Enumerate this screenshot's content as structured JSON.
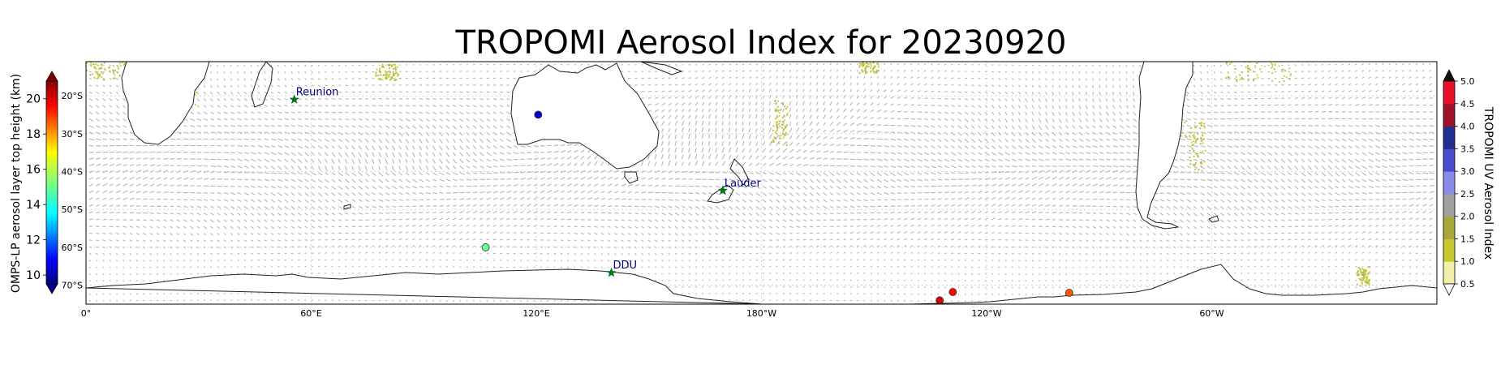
{
  "figure": {
    "title": "TROPOMI Aerosol Index for 20230920"
  },
  "map": {
    "lon_ticks": [
      "0°",
      "60°E",
      "120°E",
      "180°W",
      "120°W",
      "60°W"
    ],
    "lat_ticks": [
      "20°S",
      "30°S",
      "40°S",
      "50°S",
      "60°S",
      "70°S"
    ],
    "lon_tick_values": [
      0,
      60,
      120,
      180,
      240,
      300
    ],
    "lat_tick_values": [
      -20,
      -30,
      -40,
      -50,
      -60,
      -70
    ],
    "lon_range": [
      0,
      360
    ],
    "lat_range": [
      -75,
      -11
    ]
  },
  "left_colorbar": {
    "label": "OMPS-LP aerosol layer top height (km)",
    "ticks": [
      "20",
      "18",
      "16",
      "14",
      "12",
      "10"
    ],
    "tick_values": [
      20,
      18,
      16,
      14,
      12,
      10
    ],
    "range": [
      9.5,
      21
    ],
    "colormap": "jet",
    "extend": "both"
  },
  "right_colorbar": {
    "label": "TROPOMI UV Aerosol Index",
    "ticks": [
      "5.0",
      "4.5",
      "4.0",
      "3.5",
      "3.0",
      "2.5",
      "2.0",
      "1.5",
      "1.0",
      "0.5"
    ],
    "tick_values": [
      5.0,
      4.5,
      4.0,
      3.5,
      3.0,
      2.5,
      2.0,
      1.5,
      1.0,
      0.5
    ],
    "range": [
      0.5,
      5.0
    ],
    "colors": [
      "#ffffff",
      "#f1f0a8",
      "#c8c830",
      "#a8a838",
      "#a0a0a0",
      "#8a8ae8",
      "#4b4bd0",
      "#222f8f",
      "#a0102a",
      "#e8102a",
      "#111111"
    ],
    "extend": "both"
  },
  "stations": [
    {
      "name": "Reunion",
      "lon": 55.5,
      "lat": -21.0
    },
    {
      "name": "Lauder",
      "lon": 169.7,
      "lat": -45.0
    },
    {
      "name": "DDU",
      "lon": 140.0,
      "lat": -66.7
    }
  ],
  "omps_points": [
    {
      "lon": 120.5,
      "lat": -25.0,
      "height_km": 10.5
    },
    {
      "lon": 106.5,
      "lat": -60.0,
      "height_km": 15.0
    },
    {
      "lon": 227.5,
      "lat": -74.0,
      "height_km": 20.0
    },
    {
      "lon": 231.0,
      "lat": -71.8,
      "height_km": 19.5
    },
    {
      "lon": 262.0,
      "lat": -72.0,
      "height_km": 18.6
    }
  ]
}
